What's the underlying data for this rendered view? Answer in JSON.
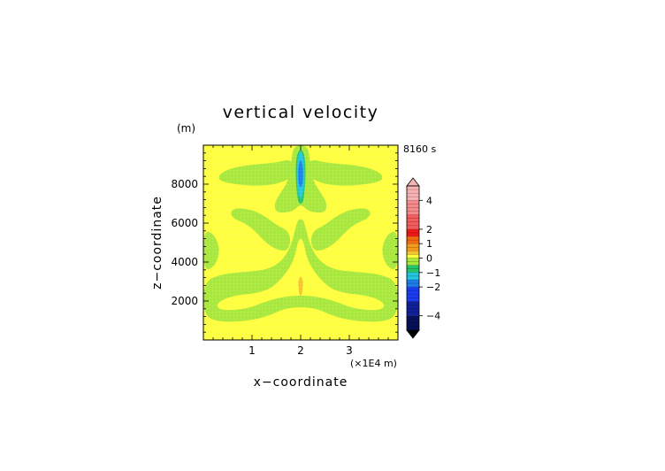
{
  "chart_data": {
    "type": "heatmap",
    "title": "vertical velocity",
    "time_label": "8160 s",
    "ylabel": "z−coordinate",
    "yunit": "(m)",
    "xlabel": "x−coordinate",
    "xunit": "(×1E4 m)",
    "xlim": [
      0,
      4
    ],
    "ylim": [
      0,
      10000
    ],
    "xticks": [
      "1",
      "2",
      "3"
    ],
    "yticks": [
      "2000",
      "4000",
      "6000",
      "8000"
    ],
    "xtick_values": [
      1,
      2,
      3
    ],
    "ytick_values": [
      2000,
      4000,
      6000,
      8000
    ],
    "colorbar": {
      "labels": [
        "4",
        "2",
        "1",
        "0",
        "−1",
        "−2",
        "−4"
      ],
      "label_values": [
        4,
        2,
        1,
        0,
        -1,
        -2,
        -4
      ],
      "levels": [
        {
          "lo": 4,
          "hi": 5,
          "color": "#f7b3b3"
        },
        {
          "lo": 3,
          "hi": 4,
          "color": "#f48a8a"
        },
        {
          "lo": 2,
          "hi": 3,
          "color": "#f25c5c"
        },
        {
          "lo": 1.5,
          "hi": 2,
          "color": "#f01818"
        },
        {
          "lo": 1,
          "hi": 1.5,
          "color": "#f56a10"
        },
        {
          "lo": 0.5,
          "hi": 1,
          "color": "#f59a1a"
        },
        {
          "lo": 0.25,
          "hi": 0.5,
          "color": "#f7c22c"
        },
        {
          "lo": 0,
          "hi": 0.25,
          "color": "#fefe3a"
        },
        {
          "lo": -0.5,
          "hi": 0,
          "color": "#a8e83a"
        },
        {
          "lo": -1,
          "hi": -0.5,
          "color": "#22c56a"
        },
        {
          "lo": -1.5,
          "hi": -1,
          "color": "#22c6e0"
        },
        {
          "lo": -2,
          "hi": -1.5,
          "color": "#1e7de8"
        },
        {
          "lo": -3,
          "hi": -2,
          "color": "#1a3cf0"
        },
        {
          "lo": -4,
          "hi": -3,
          "color": "#10209a"
        },
        {
          "lo": -5,
          "hi": -4,
          "color": "#061058"
        }
      ],
      "over_color": "#f7b3b3",
      "under_color": "#000000"
    },
    "background_color": "#fefe3a",
    "regions": [
      {
        "level": -0.25,
        "color": "#a8e83a",
        "pts": [
          [
            0.35,
            8600
          ],
          [
            0.75,
            8950
          ],
          [
            1.5,
            9100
          ],
          [
            1.8,
            9300
          ],
          [
            1.9,
            8700
          ],
          [
            1.8,
            8300
          ],
          [
            1.5,
            8000
          ],
          [
            1.1,
            7900
          ],
          [
            0.6,
            8000
          ],
          [
            0.3,
            8200
          ]
        ]
      },
      {
        "level": -0.25,
        "color": "#a8e83a",
        "pts": [
          [
            2.2,
            9300
          ],
          [
            2.5,
            9100
          ],
          [
            3.25,
            8950
          ],
          [
            3.65,
            8600
          ],
          [
            3.7,
            8200
          ],
          [
            3.4,
            8000
          ],
          [
            2.9,
            7900
          ],
          [
            2.5,
            8000
          ],
          [
            2.2,
            8300
          ],
          [
            2.1,
            8700
          ]
        ]
      },
      {
        "level": -0.25,
        "color": "#a8e83a",
        "pts": [
          [
            1.85,
            10000
          ],
          [
            2.15,
            10000
          ],
          [
            2.2,
            9000
          ],
          [
            2.25,
            8200
          ],
          [
            2.4,
            7600
          ],
          [
            2.55,
            7000
          ],
          [
            2.5,
            6500
          ],
          [
            2.15,
            6600
          ],
          [
            2.05,
            6900
          ],
          [
            1.95,
            6900
          ],
          [
            1.85,
            6600
          ],
          [
            1.5,
            6500
          ],
          [
            1.45,
            7000
          ],
          [
            1.6,
            7600
          ],
          [
            1.75,
            8200
          ],
          [
            1.8,
            9000
          ]
        ]
      },
      {
        "level": -0.25,
        "color": "#a8e83a",
        "pts": [
          [
            0.6,
            6800
          ],
          [
            1.0,
            6700
          ],
          [
            1.3,
            6300
          ],
          [
            1.5,
            5900
          ],
          [
            1.75,
            5600
          ],
          [
            1.8,
            5000
          ],
          [
            1.7,
            4500
          ],
          [
            1.35,
            4800
          ],
          [
            0.95,
            5900
          ],
          [
            0.55,
            6300
          ]
        ]
      },
      {
        "level": -0.25,
        "color": "#a8e83a",
        "pts": [
          [
            3.4,
            6800
          ],
          [
            3.0,
            6700
          ],
          [
            2.7,
            6300
          ],
          [
            2.5,
            5900
          ],
          [
            2.25,
            5600
          ],
          [
            2.2,
            5000
          ],
          [
            2.3,
            4500
          ],
          [
            2.65,
            4800
          ],
          [
            3.05,
            5900
          ],
          [
            3.45,
            6300
          ]
        ]
      },
      {
        "level": -0.25,
        "color": "#a8e83a",
        "pts": [
          [
            0,
            5600
          ],
          [
            0.2,
            5500
          ],
          [
            0.35,
            4700
          ],
          [
            0.25,
            3800
          ],
          [
            0,
            3500
          ]
        ]
      },
      {
        "level": -0.25,
        "color": "#a8e83a",
        "pts": [
          [
            4,
            5600
          ],
          [
            3.8,
            5500
          ],
          [
            3.65,
            4700
          ],
          [
            3.75,
            3800
          ],
          [
            4,
            3500
          ]
        ]
      },
      {
        "level": -0.25,
        "color": "#a8e83a",
        "pts": [
          [
            0,
            3000
          ],
          [
            0.4,
            3400
          ],
          [
            0.9,
            3500
          ],
          [
            1.3,
            3600
          ],
          [
            1.6,
            4000
          ],
          [
            1.8,
            4800
          ],
          [
            1.9,
            5800
          ],
          [
            1.95,
            6200
          ],
          [
            2.05,
            6200
          ],
          [
            2.1,
            5800
          ],
          [
            2.2,
            4800
          ],
          [
            2.4,
            4000
          ],
          [
            2.7,
            3600
          ],
          [
            3.1,
            3500
          ],
          [
            3.6,
            3400
          ],
          [
            4,
            3000
          ],
          [
            4,
            1300
          ],
          [
            3.7,
            900
          ],
          [
            3.0,
            1000
          ],
          [
            2.6,
            1300
          ],
          [
            2.35,
            1600
          ],
          [
            2.0,
            1700
          ],
          [
            1.65,
            1600
          ],
          [
            1.4,
            1300
          ],
          [
            1.0,
            1000
          ],
          [
            0.3,
            900
          ],
          [
            0,
            1300
          ]
        ]
      },
      {
        "level": 0.1,
        "color": "#fefe3a",
        "pts": [
          [
            1.95,
            5200
          ],
          [
            2.05,
            5200
          ],
          [
            2.15,
            3900
          ],
          [
            2.55,
            2700
          ],
          [
            2.9,
            2400
          ],
          [
            3.3,
            2300
          ],
          [
            3.6,
            2100
          ],
          [
            3.75,
            1750
          ],
          [
            3.6,
            1500
          ],
          [
            3.1,
            1600
          ],
          [
            2.75,
            1950
          ],
          [
            2.4,
            2200
          ],
          [
            2.0,
            2300
          ],
          [
            1.6,
            2200
          ],
          [
            1.25,
            1950
          ],
          [
            0.9,
            1600
          ],
          [
            0.4,
            1500
          ],
          [
            0.25,
            1750
          ],
          [
            0.4,
            2100
          ],
          [
            0.7,
            2300
          ],
          [
            1.1,
            2400
          ],
          [
            1.45,
            2700
          ],
          [
            1.85,
            3900
          ]
        ]
      },
      {
        "level": 0.6,
        "color": "#f7c22c",
        "pts": [
          [
            2.0,
            3300
          ],
          [
            2.04,
            3100
          ],
          [
            2.05,
            2800
          ],
          [
            2.03,
            2400
          ],
          [
            2.0,
            2200
          ],
          [
            1.97,
            2400
          ],
          [
            1.95,
            2800
          ],
          [
            1.96,
            3100
          ]
        ]
      },
      {
        "level": -0.7,
        "color": "#22c56a",
        "pts": [
          [
            2.0,
            9800
          ],
          [
            2.07,
            9600
          ],
          [
            2.1,
            9000
          ],
          [
            2.1,
            8200
          ],
          [
            2.07,
            7400
          ],
          [
            2.04,
            7000
          ],
          [
            1.96,
            7000
          ],
          [
            1.93,
            7400
          ],
          [
            1.9,
            8200
          ],
          [
            1.9,
            9000
          ],
          [
            1.93,
            9600
          ]
        ]
      },
      {
        "level": -1.2,
        "color": "#22c6e0",
        "pts": [
          [
            2.0,
            9700
          ],
          [
            2.05,
            9500
          ],
          [
            2.07,
            9000
          ],
          [
            2.08,
            8200
          ],
          [
            2.05,
            7500
          ],
          [
            2.0,
            7200
          ],
          [
            1.95,
            7500
          ],
          [
            1.92,
            8200
          ],
          [
            1.93,
            9000
          ],
          [
            1.95,
            9500
          ]
        ]
      },
      {
        "level": -1.7,
        "color": "#1e7de8",
        "pts": [
          [
            2.0,
            9300
          ],
          [
            2.04,
            9000
          ],
          [
            2.05,
            8500
          ],
          [
            2.04,
            8000
          ],
          [
            2.0,
            7800
          ],
          [
            1.96,
            8000
          ],
          [
            1.95,
            8500
          ],
          [
            1.96,
            9000
          ]
        ]
      }
    ]
  }
}
